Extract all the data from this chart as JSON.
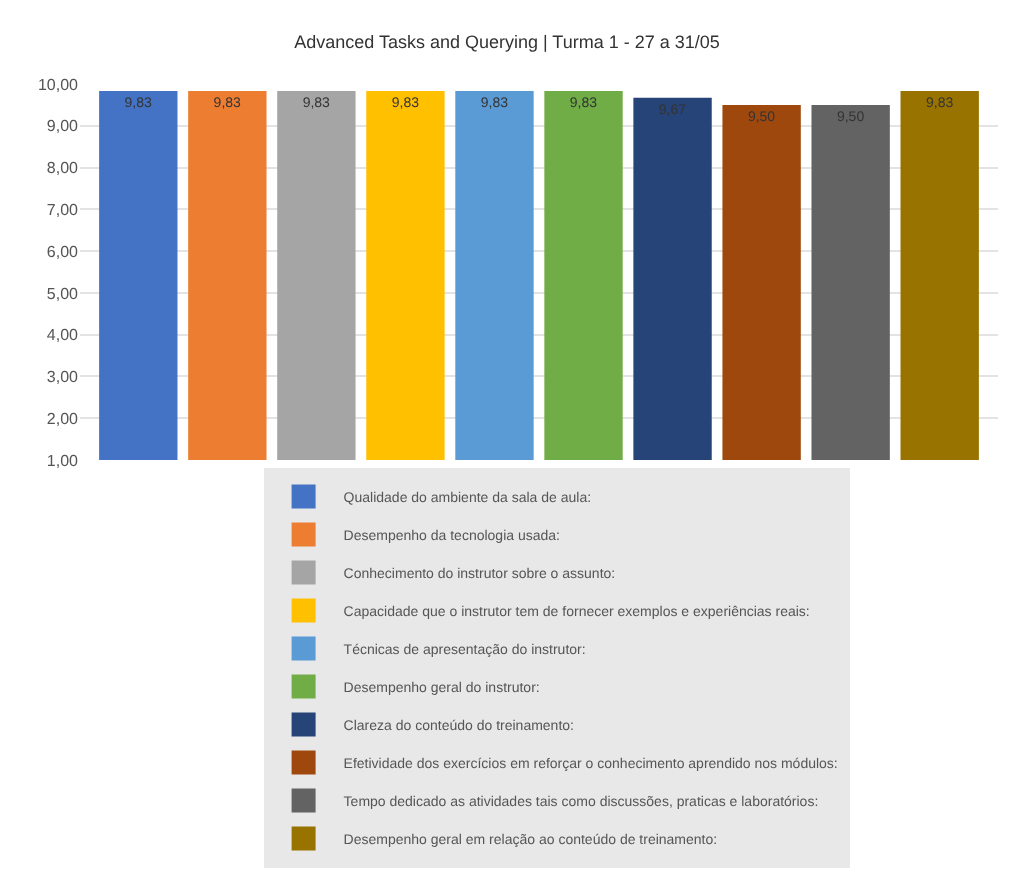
{
  "chart_data": {
    "type": "bar",
    "title": "Advanced Tasks and Querying | Turma 1 - 27 a 31/05",
    "categories": [
      null
    ],
    "series": [
      {
        "name": "Qualidade do ambiente da sala de aula:",
        "color": "#4472c4",
        "values": [
          9.83
        ],
        "value_labels": [
          "9,83"
        ]
      },
      {
        "name": "Desempenho da tecnologia usada:",
        "color": "#ed7d31",
        "values": [
          9.83
        ],
        "value_labels": [
          "9,83"
        ]
      },
      {
        "name": "Conhecimento do instrutor sobre o assunto:",
        "color": "#a5a5a5",
        "values": [
          9.83
        ],
        "value_labels": [
          "9,83"
        ]
      },
      {
        "name": "Capacidade que o instrutor tem de fornecer exemplos e experiências reais:",
        "color": "#ffc000",
        "values": [
          9.83
        ],
        "value_labels": [
          "9,83"
        ]
      },
      {
        "name": "Técnicas de apresentação do instrutor:",
        "color": "#5b9bd5",
        "values": [
          9.83
        ],
        "value_labels": [
          "9,83"
        ]
      },
      {
        "name": "Desempenho geral do instrutor:",
        "color": "#70ad47",
        "values": [
          9.83
        ],
        "value_labels": [
          "9,83"
        ]
      },
      {
        "name": "Clareza do conteúdo do treinamento:",
        "color": "#264478",
        "values": [
          9.67
        ],
        "value_labels": [
          "9,67"
        ]
      },
      {
        "name": "Efetividade dos exercícios em reforçar o conhecimento aprendido nos módulos:",
        "color": "#9e480e",
        "values": [
          9.5
        ],
        "value_labels": [
          "9,50"
        ]
      },
      {
        "name": "Tempo dedicado as atividades tais como discussões, praticas e laboratórios:",
        "color": "#636363",
        "values": [
          9.5
        ],
        "value_labels": [
          "9,50"
        ]
      },
      {
        "name": "Desempenho geral em relação ao conteúdo de treinamento:",
        "color": "#997300",
        "values": [
          9.83
        ],
        "value_labels": [
          "9,83"
        ]
      }
    ],
    "ylim": [
      1,
      10
    ],
    "yticks": [
      {
        "value": 1,
        "label": "1,00"
      },
      {
        "value": 2,
        "label": "2,00"
      },
      {
        "value": 3,
        "label": "3,00"
      },
      {
        "value": 4,
        "label": "4,00"
      },
      {
        "value": 5,
        "label": "5,00"
      },
      {
        "value": 6,
        "label": "6,00"
      },
      {
        "value": 7,
        "label": "7,00"
      },
      {
        "value": 8,
        "label": "8,00"
      },
      {
        "value": 9,
        "label": "9,00"
      },
      {
        "value": 10,
        "label": "10,00"
      }
    ],
    "grid": "y",
    "legend": "bottom"
  }
}
